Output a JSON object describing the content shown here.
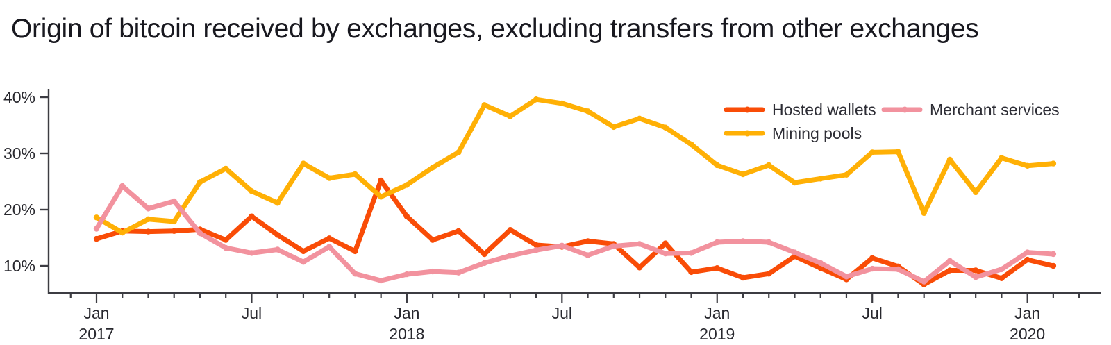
{
  "title": "Origin of bitcoin received by exchanges, excluding transfers from other exchanges",
  "colors": {
    "background": "#ffffff",
    "title_text": "#18181f",
    "axis": "#3c3c42",
    "tick_label": "#28282e",
    "legend_text": "#2d2d35"
  },
  "chart_data": {
    "type": "line",
    "title": "Origin of bitcoin received by exchanges, excluding transfers from other exchanges",
    "xlabel": "",
    "ylabel": "",
    "ylim": [
      5.2,
      41.5
    ],
    "grid": false,
    "legend_position": "top-right-inside",
    "yticks": [
      {
        "value": 10,
        "label": "10%"
      },
      {
        "value": 20,
        "label": "20%"
      },
      {
        "value": 30,
        "label": "30%"
      },
      {
        "value": 40,
        "label": "40%"
      }
    ],
    "xticks_major": [
      {
        "index": 0,
        "label": "Jan",
        "year": "2017"
      },
      {
        "index": 6,
        "label": "Jul",
        "year": ""
      },
      {
        "index": 12,
        "label": "Jan",
        "year": "2018"
      },
      {
        "index": 18,
        "label": "Jul",
        "year": ""
      },
      {
        "index": 24,
        "label": "Jan",
        "year": "2019"
      },
      {
        "index": 30,
        "label": "Jul",
        "year": ""
      },
      {
        "index": 36,
        "label": "Jan",
        "year": "2020"
      }
    ],
    "categories": [
      "Jan 2017",
      "Feb 2017",
      "Mar 2017",
      "Apr 2017",
      "May 2017",
      "Jun 2017",
      "Jul 2017",
      "Aug 2017",
      "Sep 2017",
      "Oct 2017",
      "Nov 2017",
      "Dec 2017",
      "Jan 2018",
      "Feb 2018",
      "Mar 2018",
      "Apr 2018",
      "May 2018",
      "Jun 2018",
      "Jul 2018",
      "Aug 2018",
      "Sep 2018",
      "Oct 2018",
      "Nov 2018",
      "Dec 2018",
      "Jan 2019",
      "Feb 2019",
      "Mar 2019",
      "Apr 2019",
      "May 2019",
      "Jun 2019",
      "Jul 2019",
      "Aug 2019",
      "Sep 2019",
      "Oct 2019",
      "Nov 2019",
      "Dec 2019",
      "Jan 2020",
      "Feb 2020"
    ],
    "series": [
      {
        "name": "Hosted wallets",
        "color": "#f94c07",
        "values": [
          14.8,
          16.2,
          16.1,
          16.2,
          16.5,
          14.6,
          18.8,
          15.5,
          12.6,
          14.9,
          12.6,
          25.2,
          18.8,
          14.6,
          16.2,
          12.1,
          16.4,
          13.7,
          13.4,
          14.4,
          13.9,
          9.7,
          14.0,
          8.9,
          9.6,
          7.9,
          8.6,
          11.7,
          9.6,
          7.6,
          11.4,
          9.9,
          6.7,
          9.2,
          9.2,
          7.8,
          11.1,
          10.0
        ]
      },
      {
        "name": "Mining pools",
        "color": "#ffb005",
        "values": [
          18.6,
          15.9,
          18.3,
          17.9,
          24.9,
          27.3,
          23.3,
          21.2,
          28.2,
          25.6,
          26.3,
          22.3,
          24.4,
          27.5,
          30.2,
          38.6,
          36.6,
          39.6,
          38.9,
          37.5,
          34.7,
          36.2,
          34.6,
          31.6,
          27.9,
          26.3,
          27.9,
          24.8,
          25.5,
          26.2,
          30.2,
          30.3,
          19.4,
          28.9,
          23.1,
          29.2,
          27.8,
          28.2
        ]
      },
      {
        "name": "Merchant services",
        "color": "#f2929e",
        "values": [
          16.6,
          24.2,
          20.2,
          21.5,
          15.8,
          13.2,
          12.3,
          12.9,
          10.7,
          13.4,
          8.6,
          7.4,
          8.5,
          9.0,
          8.8,
          10.5,
          11.8,
          12.8,
          13.6,
          11.9,
          13.5,
          13.9,
          12.2,
          12.3,
          14.2,
          14.4,
          14.2,
          12.4,
          10.5,
          8.1,
          9.5,
          9.4,
          7.2,
          10.9,
          8.0,
          9.4,
          12.4,
          12.1
        ]
      }
    ],
    "legend": [
      "Hosted wallets",
      "Mining pools",
      "Merchant services"
    ]
  }
}
